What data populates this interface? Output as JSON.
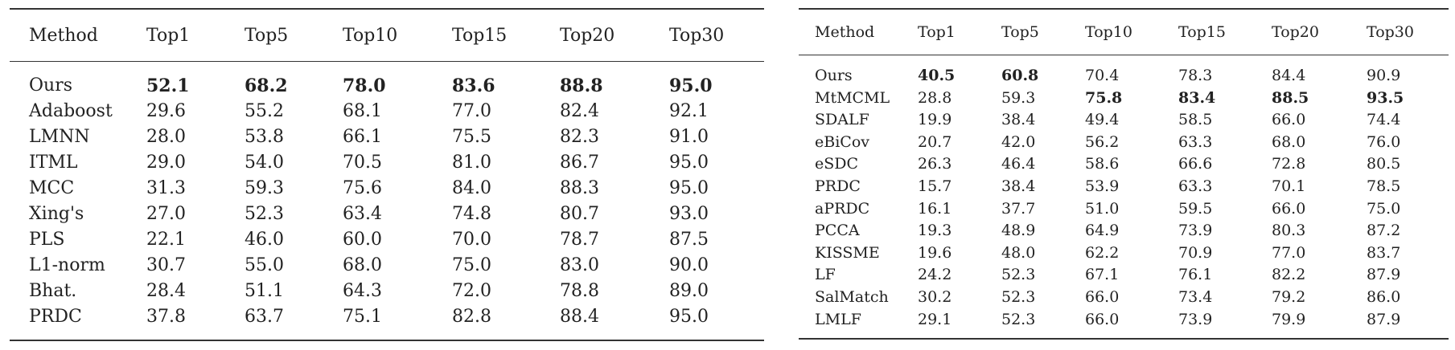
{
  "table1": {
    "headers": [
      "Method",
      "Top1",
      "Top5",
      "Top10",
      "Top15",
      "Top20",
      "Top30"
    ],
    "rows": [
      [
        "Ours",
        "52.1",
        "68.2",
        "78.0",
        "83.6",
        "88.8",
        "95.0"
      ],
      [
        "Adaboost",
        "29.6",
        "55.2",
        "68.1",
        "77.0",
        "82.4",
        "92.1"
      ],
      [
        "LMNN",
        "28.0",
        "53.8",
        "66.1",
        "75.5",
        "82.3",
        "91.0"
      ],
      [
        "ITML",
        "29.0",
        "54.0",
        "70.5",
        "81.0",
        "86.7",
        "95.0"
      ],
      [
        "MCC",
        "31.3",
        "59.3",
        "75.6",
        "84.0",
        "88.3",
        "95.0"
      ],
      [
        "Xing's",
        "27.0",
        "52.3",
        "63.4",
        "74.8",
        "80.7",
        "93.0"
      ],
      [
        "PLS",
        "22.1",
        "46.0",
        "60.0",
        "70.0",
        "78.7",
        "87.5"
      ],
      [
        "L1-norm",
        "30.7",
        "55.0",
        "68.0",
        "75.0",
        "83.0",
        "90.0"
      ],
      [
        "Bhat.",
        "28.4",
        "51.1",
        "64.3",
        "72.0",
        "78.8",
        "89.0"
      ],
      [
        "PRDC",
        "37.8",
        "63.7",
        "75.1",
        "82.8",
        "88.4",
        "95.0"
      ]
    ]
  },
  "table2": {
    "headers": [
      "Method",
      "Top1",
      "Top5",
      "Top10",
      "Top15",
      "Top20",
      "Top30"
    ],
    "rows": [
      [
        "Ours",
        "40.5",
        "60.8",
        "70.4",
        "78.3",
        "84.4",
        "90.9"
      ],
      [
        "MtMCML",
        "28.8",
        "59.3",
        "75.8",
        "83.4",
        "88.5",
        "93.5"
      ],
      [
        "SDALF",
        "19.9",
        "38.4",
        "49.4",
        "58.5",
        "66.0",
        "74.4"
      ],
      [
        "eBiCov",
        "20.7",
        "42.0",
        "56.2",
        "63.3",
        "68.0",
        "76.0"
      ],
      [
        "eSDC",
        "26.3",
        "46.4",
        "58.6",
        "66.6",
        "72.8",
        "80.5"
      ],
      [
        "PRDC",
        "15.7",
        "38.4",
        "53.9",
        "63.3",
        "70.1",
        "78.5"
      ],
      [
        "aPRDC",
        "16.1",
        "37.7",
        "51.0",
        "59.5",
        "66.0",
        "75.0"
      ],
      [
        "PCCA",
        "19.3",
        "48.9",
        "64.9",
        "73.9",
        "80.3",
        "87.2"
      ],
      [
        "KISSME",
        "19.6",
        "48.0",
        "62.2",
        "70.9",
        "77.0",
        "83.7"
      ],
      [
        "LF",
        "24.2",
        "52.3",
        "67.1",
        "76.1",
        "82.2",
        "87.9"
      ],
      [
        "SalMatch",
        "30.2",
        "52.3",
        "66.0",
        "73.4",
        "79.2",
        "86.0"
      ],
      [
        "LMLF",
        "29.1",
        "52.3",
        "66.0",
        "73.9",
        "79.9",
        "87.9"
      ]
    ]
  }
}
